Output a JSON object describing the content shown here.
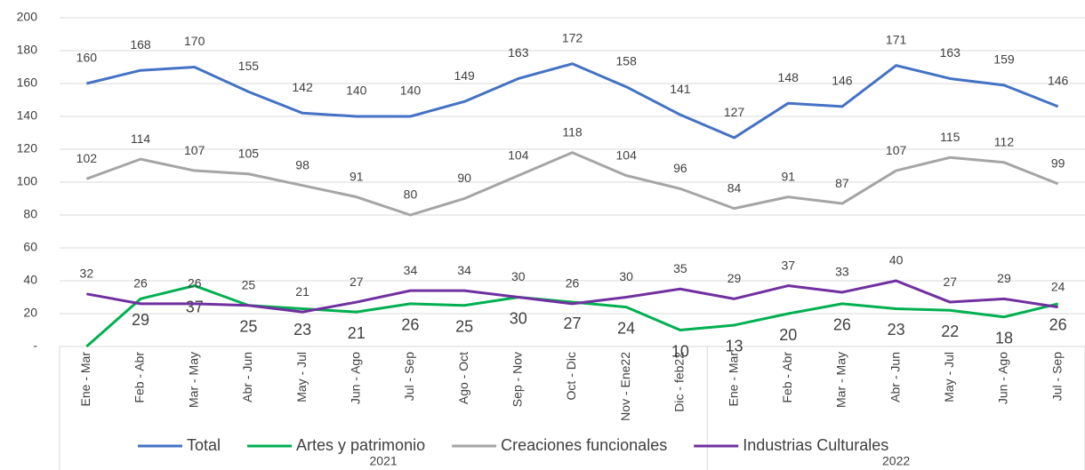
{
  "chart_data": {
    "type": "line",
    "categories": [
      "Ene - Mar",
      "Feb - Abr",
      "Mar - May",
      "Abr - Jun",
      "May - Jul",
      "Jun - Ago",
      "Jul - Sep",
      "Ago - Oct",
      "Sep - Nov",
      "Oct - Dic",
      "Nov - Ene22",
      "Dic - feb22",
      "Ene - Mar",
      "Feb - Abr",
      "Mar - May",
      "Abr - Jun",
      "May - Jul",
      "Jun - Ago",
      "Jul - Sep"
    ],
    "groups": [
      {
        "label": "2021",
        "span": 12
      },
      {
        "label": "2022",
        "span": 7
      }
    ],
    "series": [
      {
        "name": "Total",
        "color": "#4472c4",
        "values": [
          160,
          168,
          170,
          155,
          142,
          140,
          140,
          149,
          163,
          172,
          158,
          141,
          127,
          148,
          146,
          171,
          163,
          159,
          146
        ]
      },
      {
        "name": "Artes y patrimonio",
        "color": "#00b050",
        "values": [
          0,
          29,
          37,
          25,
          23,
          21,
          26,
          25,
          30,
          27,
          24,
          10,
          13,
          20,
          26,
          23,
          22,
          18,
          26
        ]
      },
      {
        "name": "Creaciones funcionales",
        "color": "#a5a5a5",
        "values": [
          102,
          114,
          107,
          105,
          98,
          91,
          80,
          90,
          104,
          118,
          104,
          96,
          84,
          91,
          87,
          107,
          115,
          112,
          99
        ]
      },
      {
        "name": "Industrias Culturales",
        "color": "#7030a0",
        "values": [
          32,
          26,
          26,
          25,
          21,
          27,
          34,
          34,
          30,
          26,
          30,
          35,
          29,
          37,
          33,
          40,
          27,
          29,
          24
        ]
      }
    ],
    "ylim": [
      0,
      200
    ],
    "yticks": [
      {
        "value": 0,
        "label": "-"
      },
      20,
      40,
      60,
      80,
      100,
      120,
      140,
      160,
      180,
      200
    ],
    "grid": true,
    "legend": "bottom"
  }
}
